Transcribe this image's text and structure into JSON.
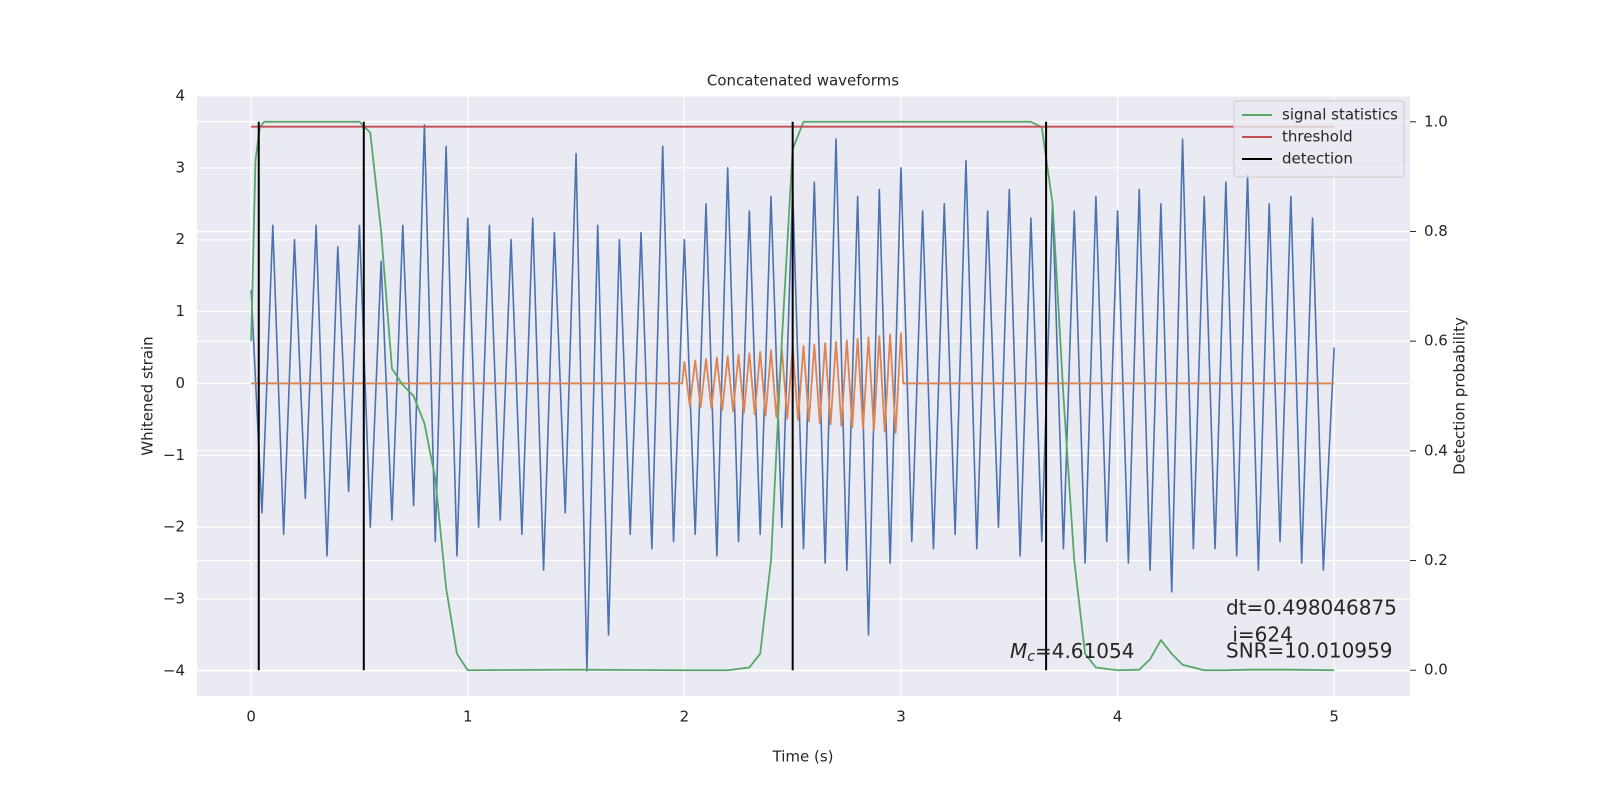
{
  "chart_data": {
    "type": "line",
    "title": "Concatenated waveforms",
    "x_label": "Time (s)",
    "y_label": "Whitened strain",
    "y2_label": "Detection probability",
    "xlim": [
      -0.25,
      5.35
    ],
    "ylim": [
      -4.35,
      4.0
    ],
    "y2lim": [
      -0.047,
      1.047
    ],
    "xticks": [
      0,
      1,
      2,
      3,
      4,
      5
    ],
    "yticks": [
      {
        "value": -4,
        "label": "−4"
      },
      {
        "value": -3,
        "label": "−3"
      },
      {
        "value": -2,
        "label": "−2"
      },
      {
        "value": -1,
        "label": "−1"
      },
      0,
      1,
      2,
      3,
      4
    ],
    "y2ticks": [
      {
        "value": 0,
        "label": "0.0"
      },
      {
        "value": 0.2,
        "label": "0.2"
      },
      {
        "value": 0.4,
        "label": "0.4"
      },
      {
        "value": 0.6,
        "label": "0.6"
      },
      {
        "value": 0.8,
        "label": "0.8"
      },
      {
        "value": 1.0,
        "label": "1.0"
      }
    ],
    "grid": true,
    "legend": "upper right",
    "series": [
      {
        "color": "#4c72b0",
        "x": [
          0,
          0.05,
          0.1,
          0.15,
          0.2,
          0.25,
          0.3,
          0.35,
          0.4,
          0.45,
          0.5,
          0.55,
          0.6,
          0.65,
          0.7,
          0.75,
          0.8,
          0.85,
          0.9,
          0.95,
          1.0,
          1.05,
          1.1,
          1.15,
          1.2,
          1.25,
          1.3,
          1.35,
          1.4,
          1.45,
          1.5,
          1.55,
          1.6,
          1.65,
          1.7,
          1.75,
          1.8,
          1.85,
          1.9,
          1.95,
          2.0,
          2.05,
          2.1,
          2.15,
          2.2,
          2.25,
          2.3,
          2.35,
          2.4,
          2.45,
          2.5,
          2.55,
          2.6,
          2.65,
          2.7,
          2.75,
          2.8,
          2.85,
          2.9,
          2.95,
          3.0,
          3.05,
          3.1,
          3.15,
          3.2,
          3.25,
          3.3,
          3.35,
          3.4,
          3.45,
          3.5,
          3.55,
          3.6,
          3.65,
          3.7,
          3.75,
          3.8,
          3.85,
          3.9,
          3.95,
          4.0,
          4.05,
          4.1,
          4.15,
          4.2,
          4.25,
          4.3,
          4.35,
          4.4,
          4.45,
          4.5,
          4.55,
          4.6,
          4.65,
          4.7,
          4.75,
          4.8,
          4.85,
          4.9,
          4.95,
          5.0
        ],
        "values": [
          1.3,
          -1.8,
          2.2,
          -2.1,
          2.0,
          -1.6,
          2.2,
          -2.4,
          1.9,
          -1.5,
          2.2,
          -2.0,
          1.7,
          -1.9,
          2.2,
          -1.7,
          3.6,
          -2.2,
          3.3,
          -2.4,
          2.3,
          -2.0,
          2.2,
          -1.9,
          2.0,
          -2.1,
          2.3,
          -2.6,
          2.1,
          -1.8,
          3.2,
          -4.0,
          2.2,
          -3.5,
          2.0,
          -2.1,
          2.1,
          -2.3,
          3.3,
          -2.2,
          2.0,
          -2.1,
          2.5,
          -2.4,
          3.0,
          -2.2,
          2.4,
          -2.1,
          2.6,
          -2.0,
          2.7,
          -2.3,
          2.8,
          -2.5,
          3.4,
          -2.6,
          2.6,
          -3.5,
          2.7,
          -2.5,
          3.0,
          -2.2,
          2.4,
          -2.3,
          2.5,
          -2.1,
          3.1,
          -2.3,
          2.4,
          -2.0,
          2.7,
          -2.4,
          2.3,
          -2.2,
          2.5,
          -2.3,
          2.4,
          -2.5,
          2.6,
          -2.2,
          2.4,
          -2.5,
          2.7,
          -2.6,
          2.5,
          -2.9,
          3.4,
          -2.3,
          2.6,
          -2.3,
          2.8,
          -2.4,
          2.9,
          -2.6,
          2.5,
          -2.2,
          2.6,
          -2.5,
          2.3,
          -2.6,
          0.5
        ]
      },
      {
        "color": "#dd8452",
        "x": [
          0,
          1.99,
          2.0,
          2.025,
          2.05,
          2.075,
          2.1,
          2.125,
          2.15,
          2.175,
          2.2,
          2.225,
          2.25,
          2.275,
          2.3,
          2.325,
          2.35,
          2.375,
          2.4,
          2.425,
          2.45,
          2.475,
          2.5,
          2.525,
          2.55,
          2.575,
          2.6,
          2.625,
          2.65,
          2.675,
          2.7,
          2.725,
          2.75,
          2.775,
          2.8,
          2.825,
          2.85,
          2.875,
          2.9,
          2.925,
          2.95,
          2.975,
          3.0,
          3.01,
          5
        ],
        "values": [
          0,
          0,
          0.3,
          -0.31,
          0.32,
          -0.33,
          0.34,
          -0.35,
          0.36,
          -0.37,
          0.38,
          -0.39,
          0.4,
          -0.41,
          0.42,
          -0.43,
          0.44,
          -0.45,
          0.46,
          -0.47,
          0.48,
          -0.49,
          0.5,
          -0.51,
          0.52,
          -0.53,
          0.54,
          -0.55,
          0.56,
          -0.57,
          0.58,
          -0.59,
          0.6,
          -0.61,
          0.62,
          -0.63,
          0.64,
          -0.65,
          0.66,
          -0.67,
          0.68,
          -0.69,
          0.7,
          0,
          0
        ]
      },
      {
        "name": "signal statistics",
        "color": "#55a868",
        "axis": "y2",
        "x": [
          0,
          0.02,
          0.04,
          0.06,
          0.1,
          0.3,
          0.5,
          0.55,
          0.6,
          0.65,
          0.7,
          0.75,
          0.8,
          0.85,
          0.9,
          0.95,
          1.0,
          1.5,
          2.0,
          2.2,
          2.3,
          2.35,
          2.4,
          2.45,
          2.5,
          2.55,
          2.6,
          3.0,
          3.6,
          3.65,
          3.7,
          3.75,
          3.8,
          3.85,
          3.9,
          4.0,
          4.1,
          4.15,
          4.2,
          4.25,
          4.3,
          4.4,
          4.5,
          4.6,
          4.8,
          5.0
        ],
        "values": [
          0.6,
          0.93,
          0.99,
          1.0,
          1.0,
          1.0,
          1.0,
          0.98,
          0.8,
          0.55,
          0.52,
          0.5,
          0.45,
          0.35,
          0.15,
          0.03,
          0.0,
          0.001,
          0.0,
          0.0,
          0.005,
          0.03,
          0.2,
          0.6,
          0.95,
          1.0,
          1.0,
          1.0,
          1.0,
          0.99,
          0.85,
          0.5,
          0.2,
          0.03,
          0.005,
          0.0,
          0.001,
          0.02,
          0.055,
          0.03,
          0.01,
          0.0,
          0.0,
          0.001,
          0.001,
          0.0
        ]
      },
      {
        "name": "threshold",
        "color": "#c44e52",
        "axis": "y2",
        "x": [
          0,
          5
        ],
        "values": [
          0.991,
          0.991
        ]
      },
      {
        "name": "detection",
        "color": "#000000",
        "axis": "y2",
        "kind": "vlines",
        "x": [
          0.035,
          0.52,
          2.5,
          3.67
        ],
        "ymin": 0,
        "ymax": 1
      }
    ],
    "annotations": {
      "mc_symbol": "M",
      "mc_subscript": "c",
      "mc_value": "=4.61054",
      "dt": "dt=0.498046875",
      "i": " i=624",
      "snr": "SNR=10.010959"
    }
  }
}
